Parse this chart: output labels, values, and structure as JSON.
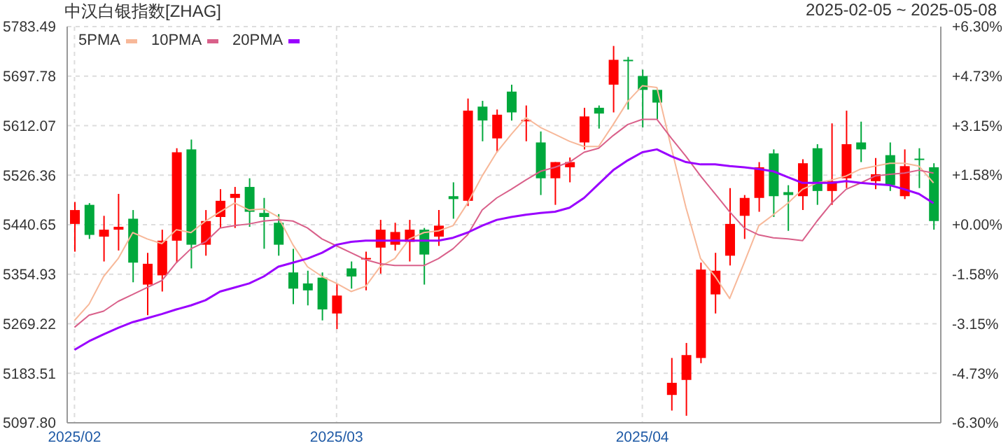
{
  "chart_data": {
    "type": "candlestick",
    "title": "中汉白银指数[ZHAG]",
    "subtitle": "2025-02-05 ~ 2025-05-08",
    "categories": [
      "2025/02",
      null,
      null,
      null,
      null,
      null,
      null,
      null,
      null,
      null,
      null,
      null,
      null,
      null,
      null,
      null,
      null,
      null,
      "2025/03",
      null,
      null,
      null,
      null,
      null,
      null,
      null,
      null,
      null,
      null,
      null,
      null,
      null,
      null,
      null,
      null,
      null,
      null,
      null,
      null,
      "2025/04",
      null,
      null,
      null,
      null,
      null,
      null,
      null,
      null,
      null,
      null,
      null,
      null,
      null,
      null,
      null,
      null,
      null,
      null,
      null,
      null
    ],
    "ohlc": [
      [
        5442,
        5480,
        5394,
        5466
      ],
      [
        5475,
        5478,
        5416,
        5423
      ],
      [
        5420,
        5456,
        5377,
        5432
      ],
      [
        5432,
        5494,
        5396,
        5437
      ],
      [
        5451,
        5466,
        5341,
        5375
      ],
      [
        5337,
        5392,
        5284,
        5373
      ],
      [
        5353,
        5432,
        5325,
        5413
      ],
      [
        5413,
        5573,
        5375,
        5566
      ],
      [
        5571,
        5588,
        5365,
        5406
      ],
      [
        5406,
        5466,
        5387,
        5447
      ],
      [
        5454,
        5502,
        5435,
        5482
      ],
      [
        5487,
        5506,
        5435,
        5494
      ],
      [
        5506,
        5521,
        5437,
        5463
      ],
      [
        5461,
        5487,
        5399,
        5454
      ],
      [
        5444,
        5459,
        5387,
        5406
      ],
      [
        5358,
        5399,
        5303,
        5330
      ],
      [
        5339,
        5361,
        5301,
        5327
      ],
      [
        5349,
        5358,
        5275,
        5294
      ],
      [
        5287,
        5339,
        5260,
        5318
      ],
      [
        5365,
        5377,
        5330,
        5351
      ],
      [
        5381,
        5394,
        5327,
        5383
      ],
      [
        5401,
        5449,
        5356,
        5432
      ],
      [
        5406,
        5444,
        5396,
        5428
      ],
      [
        5411,
        5449,
        5377,
        5432
      ],
      [
        5432,
        5435,
        5337,
        5389
      ],
      [
        5420,
        5466,
        5404,
        5439
      ],
      [
        5490,
        5514,
        5451,
        5485
      ],
      [
        5482,
        5659,
        5473,
        5638
      ],
      [
        5645,
        5655,
        5585,
        5621
      ],
      [
        5590,
        5640,
        5566,
        5631
      ],
      [
        5671,
        5683,
        5621,
        5635
      ],
      [
        5620,
        5647,
        5585,
        5622
      ],
      [
        5583,
        5602,
        5492,
        5521
      ],
      [
        5521,
        5549,
        5475,
        5549
      ],
      [
        5540,
        5557,
        5514,
        5549
      ],
      [
        5583,
        5643,
        5571,
        5628
      ],
      [
        5643,
        5647,
        5607,
        5633
      ],
      [
        5683,
        5750,
        5635,
        5726
      ],
      [
        5726,
        5731,
        5640,
        5724
      ],
      [
        5698,
        5709,
        5609,
        5674
      ],
      [
        5674,
        5676,
        5623,
        5652
      ],
      [
        5146,
        5210,
        5119,
        5167
      ],
      [
        5172,
        5236,
        5110,
        5215
      ],
      [
        5210,
        5375,
        5201,
        5363
      ],
      [
        5320,
        5392,
        5287,
        5361
      ],
      [
        5387,
        5504,
        5370,
        5442
      ],
      [
        5456,
        5492,
        5416,
        5487
      ],
      [
        5487,
        5549,
        5463,
        5540
      ],
      [
        5564,
        5571,
        5454,
        5490
      ],
      [
        5497,
        5509,
        5430,
        5492
      ],
      [
        5490,
        5554,
        5466,
        5547
      ],
      [
        5573,
        5580,
        5475,
        5499
      ],
      [
        5499,
        5616,
        5475,
        5516
      ],
      [
        5521,
        5638,
        5504,
        5580
      ],
      [
        5583,
        5619,
        5549,
        5571
      ],
      [
        5516,
        5556,
        5502,
        5528
      ],
      [
        5561,
        5583,
        5499,
        5509
      ],
      [
        5490,
        5571,
        5485,
        5542
      ],
      [
        5555,
        5573,
        5504,
        5553
      ],
      [
        5540,
        5547,
        5432,
        5447
      ]
    ],
    "colors": [
      "#ff0000",
      "#00a83c",
      "#ff0000",
      "#ff0000",
      "#00a83c",
      "#ff0000",
      "#ff0000",
      "#ff0000",
      "#00a83c",
      "#ff0000",
      "#ff0000",
      "#ff0000",
      "#00a83c",
      "#00a83c",
      "#00a83c",
      "#00a83c",
      "#00a83c",
      "#00a83c",
      "#ff0000",
      "#00a83c",
      "#ff0000",
      "#ff0000",
      "#ff0000",
      "#ff0000",
      "#00a83c",
      "#ff0000",
      "#00a83c",
      "#ff0000",
      "#00a83c",
      "#ff0000",
      "#00a83c",
      "#ff0000",
      "#00a83c",
      "#ff0000",
      "#ff0000",
      "#ff0000",
      "#00a83c",
      "#ff0000",
      "#00a83c",
      "#00a83c",
      "#00a83c",
      "#ff0000",
      "#ff0000",
      "#ff0000",
      "#ff0000",
      "#ff0000",
      "#ff0000",
      "#ff0000",
      "#00a83c",
      "#00a83c",
      "#ff0000",
      "#00a83c",
      "#ff0000",
      "#ff0000",
      "#00a83c",
      "#ff0000",
      "#00a83c",
      "#ff0000",
      "#00a83c",
      "#00a83c"
    ],
    "series": [
      {
        "type": "line",
        "name": "5PMA",
        "color": "#f7b899",
        "values": [
          5275,
          5303,
          5351,
          5382,
          5427,
          5416,
          5408,
          5432,
          5427,
          5447,
          5463,
          5478,
          5466,
          5468,
          5454,
          5406,
          5368,
          5351,
          5339,
          5325,
          5334,
          5368,
          5382,
          5416,
          5427,
          5430,
          5439,
          5478,
          5525,
          5566,
          5597,
          5626,
          5609,
          5597,
          5585,
          5576,
          5576,
          5614,
          5654,
          5681,
          5678,
          5573,
          5470,
          5382,
          5351,
          5313,
          5375,
          5439,
          5458,
          5478,
          5502,
          5513,
          5518,
          5525,
          5537,
          5542,
          5547,
          5547,
          5542,
          5513
        ]
      },
      {
        "type": "line",
        "name": "10PMA",
        "color": "#d9608a",
        "values": [
          5263,
          5284,
          5291,
          5308,
          5320,
          5332,
          5344,
          5375,
          5399,
          5411,
          5435,
          5439,
          5442,
          5447,
          5449,
          5447,
          5435,
          5416,
          5404,
          5392,
          5380,
          5373,
          5370,
          5370,
          5370,
          5382,
          5399,
          5423,
          5466,
          5487,
          5502,
          5518,
          5533,
          5540,
          5549,
          5566,
          5573,
          5595,
          5614,
          5623,
          5623,
          5590,
          5559,
          5525,
          5494,
          5463,
          5435,
          5423,
          5418,
          5416,
          5413,
          5447,
          5478,
          5502,
          5513,
          5525,
          5528,
          5530,
          5535,
          5530
        ]
      },
      {
        "type": "line",
        "name": "20PMA",
        "color": "#9a00ff",
        "values": [
          5224,
          5239,
          5251,
          5262,
          5272,
          5279,
          5286,
          5294,
          5301,
          5310,
          5325,
          5332,
          5339,
          5351,
          5368,
          5375,
          5382,
          5392,
          5406,
          5411,
          5413,
          5413,
          5413,
          5413,
          5413,
          5413,
          5418,
          5427,
          5439,
          5449,
          5454,
          5458,
          5461,
          5463,
          5470,
          5487,
          5511,
          5535,
          5552,
          5566,
          5571,
          5559,
          5549,
          5545,
          5545,
          5542,
          5540,
          5537,
          5533,
          5523,
          5513,
          5513,
          5513,
          5516,
          5513,
          5511,
          5509,
          5502,
          5494,
          5478
        ]
      }
    ],
    "ylim": [
      5097.8,
      5783.49
    ],
    "yticks": [
      {
        "value": 5097.8,
        "label": "5097.80"
      },
      5183.51,
      5269.22,
      5354.93,
      5440.65,
      5526.36,
      5612.07,
      5697.78,
      5783.49
    ],
    "y2lim": [
      -6.3,
      6.3
    ],
    "y2ticks": [
      {
        "value": -6.3,
        "label": "-6.30%"
      },
      {
        "value": -4.73,
        "label": "-4.73%"
      },
      {
        "value": -3.15,
        "label": "-3.15%"
      },
      {
        "value": -1.58,
        "label": "-1.58%"
      },
      {
        "value": 0,
        "label": "+0.00%"
      },
      {
        "value": 1.58,
        "label": "+1.58%"
      },
      {
        "value": 3.15,
        "label": "+3.15%"
      },
      {
        "value": 4.73,
        "label": "+4.73%"
      },
      {
        "value": 6.3,
        "label": "+6.30%"
      }
    ],
    "grid": true,
    "legend": "top left"
  }
}
